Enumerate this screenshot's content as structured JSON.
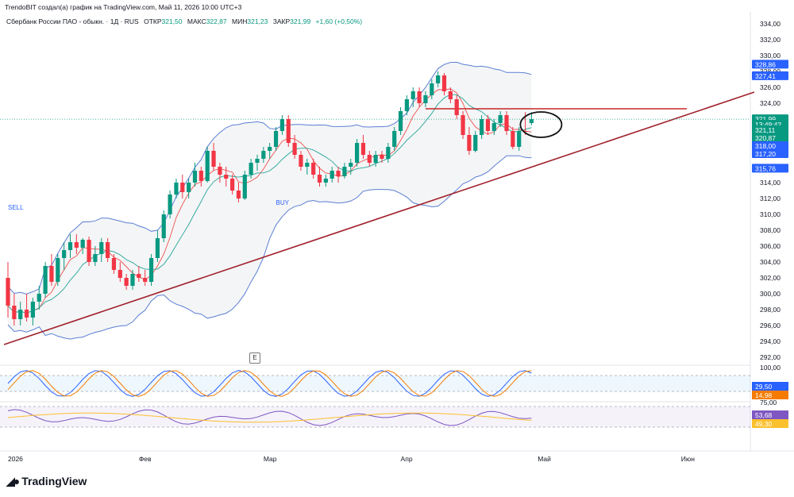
{
  "header": {
    "creator": "TrendoBIT создал(а) график на TradingView.com, Май 11, 2026 10:00 UTC+3",
    "symbol": "Сбербанк России ПАО - обыкн. · 1Д · RUS",
    "open_label": "ОТКР",
    "open": "321,50",
    "high_label": "МАКС",
    "high": "322,87",
    "low_label": "МИН",
    "low": "321,23",
    "close_label": "ЗАКР",
    "close": "321,99",
    "change": "+1,60 (+0,50%)"
  },
  "chart_data": {
    "type": "candlestick",
    "price_axis": {
      "range": [
        291,
        334.5
      ],
      "ticks": [
        "334,00",
        "332,00",
        "330,00",
        "328,00",
        "326,00",
        "324,00",
        "322,00",
        "320,00",
        "318,00",
        "316,00",
        "314,00",
        "312,00",
        "310,00",
        "308,00",
        "306,00",
        "304,00",
        "302,00",
        "300,00",
        "298,00",
        "296,00",
        "294,00",
        "292,00"
      ]
    },
    "time_axis": {
      "labels": [
        {
          "label": "2026",
          "bar": 0
        },
        {
          "label": "Фев",
          "bar": 21
        },
        {
          "label": "Мар",
          "bar": 41
        },
        {
          "label": "Апр",
          "bar": 63
        },
        {
          "label": "Май",
          "bar": 85
        },
        {
          "label": "Июн",
          "bar": 108
        }
      ],
      "total_slots": 120
    },
    "candles": [
      [
        302,
        304,
        297,
        298.5
      ],
      [
        298.5,
        300,
        296,
        296.8
      ],
      [
        296.8,
        299,
        296,
        298
      ],
      [
        298,
        300,
        296.5,
        297
      ],
      [
        297,
        299.5,
        296,
        299
      ],
      [
        299,
        301,
        298,
        300
      ],
      [
        300,
        304,
        299.5,
        303.5
      ],
      [
        303.5,
        305,
        301,
        301.5
      ],
      [
        301.5,
        305,
        301,
        304.5
      ],
      [
        304.5,
        306.5,
        303,
        305.5
      ],
      [
        305.5,
        307.5,
        304.5,
        306.5
      ],
      [
        306.5,
        307.5,
        305,
        305.8
      ],
      [
        305.8,
        307,
        305,
        306.8
      ],
      [
        306.8,
        307.2,
        303.5,
        304
      ],
      [
        304,
        306,
        303.5,
        305
      ],
      [
        305,
        307,
        304,
        306.5
      ],
      [
        306.5,
        307,
        304,
        304.5
      ],
      [
        304.5,
        305,
        302.5,
        303
      ],
      [
        303,
        304,
        301.5,
        302
      ],
      [
        302,
        302.5,
        300.5,
        301
      ],
      [
        301,
        303,
        300.5,
        302.5
      ],
      [
        302.5,
        303.5,
        301.5,
        302
      ],
      [
        302,
        303,
        301,
        301.5
      ],
      [
        301.5,
        305,
        301,
        304.5
      ],
      [
        304.5,
        308,
        304,
        307
      ],
      [
        307,
        310.5,
        306.5,
        310
      ],
      [
        310,
        313,
        309.5,
        312.5
      ],
      [
        312.5,
        314.5,
        312,
        314
      ],
      [
        314,
        315,
        312,
        312.8
      ],
      [
        312.8,
        314.5,
        312,
        314
      ],
      [
        314,
        316.5,
        313.5,
        315.5
      ],
      [
        315.5,
        316,
        313.5,
        314.2
      ],
      [
        314.2,
        318.5,
        314,
        318
      ],
      [
        318,
        319,
        315.5,
        316
      ],
      [
        316,
        316.5,
        314,
        315
      ],
      [
        315,
        316,
        313.5,
        314.5
      ],
      [
        314.5,
        315,
        312.5,
        313
      ],
      [
        313,
        314,
        311.5,
        312
      ],
      [
        312,
        315.5,
        311.8,
        315
      ],
      [
        315,
        317,
        314.5,
        316.5
      ],
      [
        316.5,
        317.5,
        315.5,
        317
      ],
      [
        317,
        318.5,
        316.5,
        318
      ],
      [
        318,
        319,
        317,
        318.5
      ],
      [
        318.5,
        321,
        318,
        320.5
      ],
      [
        320.5,
        322.5,
        320,
        322
      ],
      [
        322,
        322.5,
        318.5,
        319
      ],
      [
        319,
        320,
        317,
        317.5
      ],
      [
        317.5,
        318,
        315.5,
        316
      ],
      [
        316,
        317,
        315,
        316.5
      ],
      [
        316.5,
        317,
        314.5,
        315
      ],
      [
        315,
        316,
        313.5,
        314
      ],
      [
        314,
        315,
        313.5,
        314.5
      ],
      [
        314.5,
        316,
        314,
        315.5
      ],
      [
        315.5,
        316,
        314,
        314.8
      ],
      [
        314.8,
        316.5,
        314.5,
        316
      ],
      [
        316,
        317,
        315,
        316.5
      ],
      [
        316.5,
        319.5,
        316,
        319
      ],
      [
        319,
        320,
        317,
        317.5
      ],
      [
        317.5,
        318,
        316,
        316.5
      ],
      [
        316.5,
        318,
        316,
        317.5
      ],
      [
        317.5,
        318,
        316.5,
        317
      ],
      [
        317,
        319,
        316.5,
        318.5
      ],
      [
        318.5,
        321,
        318,
        320.5
      ],
      [
        320.5,
        323.5,
        320,
        323
      ],
      [
        323,
        325,
        322.5,
        324.5
      ],
      [
        324.5,
        326,
        323.5,
        325.5
      ],
      [
        325.5,
        326,
        323.5,
        324
      ],
      [
        324,
        325.5,
        323.5,
        325
      ],
      [
        325,
        327,
        324.5,
        326.5
      ],
      [
        326.5,
        328,
        326,
        327.5
      ],
      [
        327.5,
        327.8,
        325,
        325.5
      ],
      [
        325.5,
        326,
        324,
        324.5
      ],
      [
        324.5,
        325,
        322,
        322.5
      ],
      [
        322.5,
        323,
        319.5,
        320
      ],
      [
        320,
        321,
        317.5,
        318
      ],
      [
        318,
        320.5,
        317.8,
        320
      ],
      [
        320,
        322.5,
        319.5,
        322
      ],
      [
        322,
        322.5,
        320,
        320.5
      ],
      [
        320.5,
        322,
        320,
        321.5
      ],
      [
        321.5,
        323,
        321,
        322.5
      ],
      [
        322.5,
        323,
        320,
        320.5
      ],
      [
        320.5,
        321,
        318.2,
        318.5
      ],
      [
        318.5,
        321,
        318,
        320.5
      ],
      [
        320.5,
        322.87,
        320,
        320.39
      ],
      [
        321.5,
        322.87,
        321.23,
        321.99
      ]
    ],
    "ma_fast_color": "#ef5350",
    "ma_slow_color": "#26a69a",
    "bollinger_color": "#5b7fd4",
    "resistance_level": 323.3,
    "price_badges": [
      {
        "value": "328,86",
        "price": 328.86,
        "color": "#2962ff"
      },
      {
        "value": "327,41",
        "price": 327.41,
        "color": "#2962ff"
      },
      {
        "value": "321,99",
        "price": 321.99,
        "color": "#089981"
      },
      {
        "value": "13:49:42",
        "price": 321.3,
        "color": "#089981"
      },
      {
        "value": "321,11",
        "price": 320.6,
        "color": "#089981"
      },
      {
        "value": "320,87",
        "price": 319.6,
        "color": "#089981"
      },
      {
        "value": "318,00",
        "price": 318.6,
        "color": "#2962ff"
      },
      {
        "value": "317,20",
        "price": 317.6,
        "color": "#2962ff"
      },
      {
        "value": "315,76",
        "price": 315.76,
        "color": "#2962ff"
      }
    ],
    "signal_labels": [
      {
        "text": "SELL",
        "bar": 0,
        "price": 310.6,
        "color": "#2962ff"
      },
      {
        "text": "BUY",
        "bar": 43,
        "price": 311.2,
        "color": "#2962ff"
      }
    ],
    "stoch_panel": {
      "ticks": [
        "100,00"
      ],
      "badges": [
        {
          "value": "29,50",
          "color": "#2962ff"
        },
        {
          "value": "14,98",
          "color": "#f57c00"
        }
      ]
    },
    "rsi_panel": {
      "ticks": [
        "75,00"
      ],
      "badges": [
        {
          "value": "53,68",
          "color": "#7e57c2"
        },
        {
          "value": "49,30",
          "color": "#fbc02d"
        }
      ]
    },
    "up_color": "#089981",
    "down_color": "#f23645"
  },
  "e_marker": "E",
  "logo": {
    "text": "TradingView"
  }
}
